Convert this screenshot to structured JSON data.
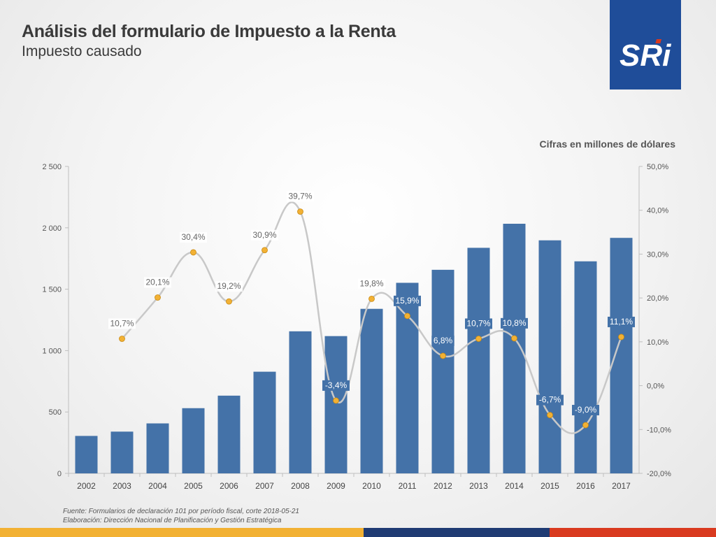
{
  "header": {
    "title": "Análisis del formulario de Impuesto a la Renta",
    "subtitle": "Impuesto causado"
  },
  "logo": {
    "text": "SRi"
  },
  "units_note": "Cifras en millones de dólares",
  "source": {
    "line1": "Fuente: Formularios de declaración 101 por período fiscal, corte 2018-05-21",
    "line2": "Elaboración: Dirección Nacional de Planificación y Gestión Estratégica"
  },
  "colors": {
    "bar": "#4472a8",
    "line": "#c8c8c8",
    "marker": "#f2b134",
    "logo_bg": "#1f4d99",
    "logo_accent": "#d93a1f"
  },
  "chart_data": {
    "type": "bar+line",
    "categories": [
      "2002",
      "2003",
      "2004",
      "2005",
      "2006",
      "2007",
      "2008",
      "2009",
      "2010",
      "2011",
      "2012",
      "2013",
      "2014",
      "2015",
      "2016",
      "2017"
    ],
    "series": [
      {
        "type": "bar",
        "axis": "left",
        "values": [
          305,
          340,
          407,
          531,
          633,
          828,
          1157,
          1118,
          1340,
          1552,
          1658,
          1837,
          2033,
          1898,
          1727,
          1918
        ]
      },
      {
        "type": "line",
        "axis": "right",
        "values": [
          null,
          10.7,
          20.1,
          30.4,
          19.2,
          30.9,
          39.7,
          -3.4,
          19.8,
          15.9,
          6.8,
          10.7,
          10.8,
          -6.7,
          -9.0,
          11.1
        ],
        "labels": [
          "",
          "10,7%",
          "20,1%",
          "30,4%",
          "19,2%",
          "30,9%",
          "39,7%",
          "-3,4%",
          "19,8%",
          "15,9%",
          "6,8%",
          "10,7%",
          "10,8%",
          "-6,7%",
          "-9,0%",
          "11,1%"
        ]
      }
    ],
    "left_axis": {
      "min": 0,
      "max": 2500,
      "ticks": [
        0,
        500,
        1000,
        1500,
        2000,
        2500
      ],
      "tick_labels": [
        "0",
        "500",
        "1 000",
        "1 500",
        "2 000",
        "2 500"
      ]
    },
    "right_axis": {
      "min": -20,
      "max": 50,
      "ticks": [
        -20,
        -10,
        0,
        10,
        20,
        30,
        40,
        50
      ],
      "tick_labels": [
        "-20,0%",
        "-10,0%",
        "0,0%",
        "10,0%",
        "20,0%",
        "30,0%",
        "40,0%",
        "50,0%"
      ]
    },
    "grid": false,
    "legend": "none"
  }
}
